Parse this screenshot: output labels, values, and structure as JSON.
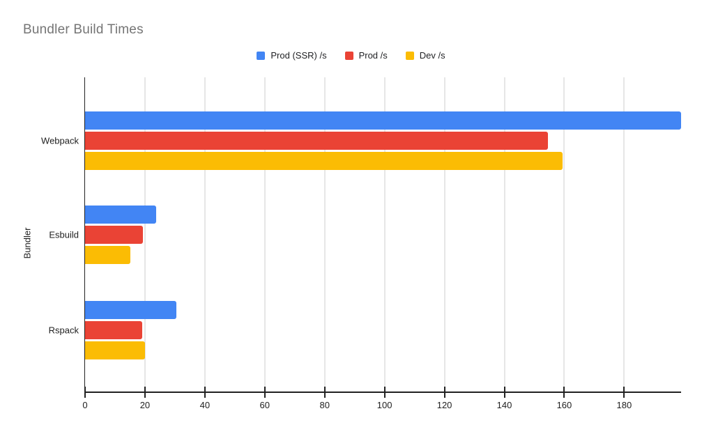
{
  "title": "Bundler Build Times",
  "chart_data": {
    "type": "bar",
    "orientation": "horizontal",
    "title": "Bundler Build Times",
    "xlabel": "",
    "ylabel": "Bundler",
    "categories": [
      "Webpack",
      "Esbuild",
      "Rspack"
    ],
    "series": [
      {
        "name": "Prod (SSR) /s",
        "color": "#4285F4",
        "values": [
          199,
          23.7,
          30.5
        ]
      },
      {
        "name": "Prod /s",
        "color": "#EA4335",
        "values": [
          154.5,
          19.3,
          19.1
        ]
      },
      {
        "name": "Dev /s",
        "color": "#FBBC04",
        "values": [
          159.5,
          15.1,
          20
        ]
      }
    ],
    "x_axis": {
      "min": 0,
      "max": 199,
      "tick_step": 20,
      "ticks": [
        0,
        20,
        40,
        60,
        80,
        100,
        120,
        140,
        160,
        180
      ]
    },
    "legend_position": "top-center",
    "grid": true,
    "colors": {
      "title_text": "#757575",
      "axis_text": "#212121",
      "legend_text": "#202124",
      "gridline": "#cccccc",
      "axis_line": "#212121",
      "background": "#ffffff"
    }
  }
}
